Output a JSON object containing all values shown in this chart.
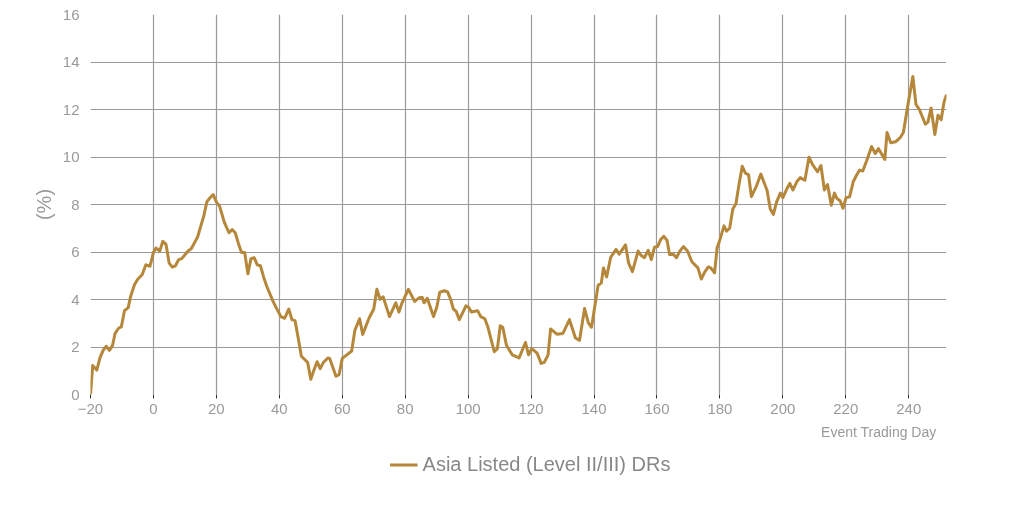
{
  "chart_data": {
    "type": "line",
    "xlabel": "Event Trading Day",
    "ylabel": "(%)",
    "x": [
      -20,
      -19.3,
      -18,
      -17,
      -16,
      -15,
      -14,
      -13,
      -12.2,
      -11,
      -10.2,
      -9.2,
      -8,
      -7.3,
      -6,
      -5,
      -3.6,
      -2.4,
      -1.1,
      0,
      0.8,
      2,
      3,
      4,
      5,
      6,
      7,
      8,
      9,
      11,
      12,
      14,
      15,
      16,
      17,
      18,
      19,
      20,
      21,
      22.5,
      24,
      25,
      26,
      27,
      28,
      29,
      30,
      31,
      32,
      33,
      34,
      35,
      36,
      37,
      38,
      39,
      40.5,
      41.7,
      43,
      44,
      45,
      46,
      47,
      49,
      50,
      51,
      52,
      53,
      54,
      55.4,
      56,
      58,
      59,
      60,
      63,
      64,
      65.5,
      66.5,
      68.5,
      70,
      71,
      72,
      73,
      75,
      77,
      78,
      79,
      81,
      83,
      84.4,
      85.4,
      86,
      87,
      89,
      90,
      91,
      92.5,
      93.5,
      94.5,
      95.3,
      96.2,
      97.2,
      99.3,
      100.2,
      101,
      103,
      104,
      105.3,
      106.3,
      108.3,
      109.3,
      110.2,
      111,
      112.2,
      114,
      116.2,
      118.2,
      119.2,
      120.2,
      121.9,
      123.2,
      124.2,
      125.4,
      126.2,
      128.2,
      130.1,
      132.2,
      134.1,
      135.4,
      137,
      138.2,
      139.2,
      141.3,
      142.3,
      143,
      144,
      145.3,
      147,
      148,
      150,
      151,
      152.2,
      154,
      155,
      156,
      157.2,
      158.2,
      159.2,
      160.2,
      161.2,
      162.2,
      163.2,
      164,
      165.2,
      166.2,
      167.2,
      168.4,
      169.7,
      171.1,
      173,
      174.1,
      175.1,
      176.3,
      177.1,
      178.3,
      179.1,
      180.1,
      181.3,
      182.1,
      183.1,
      184.1,
      185.1,
      186.1,
      187.1,
      188.1,
      189.1,
      190,
      191.5,
      193,
      195,
      196,
      197,
      198,
      199.2,
      200,
      201.2,
      202.2,
      203.2,
      204.5,
      205.5,
      207,
      208.3,
      209.5,
      211,
      212.1,
      213.2,
      214.2,
      215.4,
      216.4,
      217.2,
      218.2,
      219.1,
      220.1,
      221.2,
      222.4,
      223.4,
      224.4,
      225.4,
      226.6,
      228.2,
      229.4,
      230.4,
      232.4,
      233.1,
      234.3,
      235.8,
      237.3,
      238.3,
      239.8,
      241.3,
      242.3,
      243.3,
      245.3,
      246.1,
      247.1,
      248.3,
      249.3,
      250.3,
      251.2,
      252
    ],
    "series": [
      {
        "name": "Asia Listed (Level II/III) DRs",
        "color": "#b5873a",
        "values": [
          0,
          1.22,
          1.03,
          1.54,
          1.86,
          2.03,
          1.86,
          2.06,
          2.57,
          2.8,
          2.85,
          3.53,
          3.66,
          4.11,
          4.63,
          4.85,
          5.04,
          5.46,
          5.4,
          5.98,
          6.17,
          6.04,
          6.45,
          6.32,
          5.53,
          5.36,
          5.42,
          5.68,
          5.72,
          6.04,
          6.14,
          6.62,
          7.07,
          7.52,
          8.12,
          8.29,
          8.42,
          8.1,
          7.94,
          7.26,
          6.81,
          6.94,
          6.81,
          6.36,
          5.98,
          5.98,
          5.08,
          5.72,
          5.76,
          5.46,
          5.42,
          4.95,
          4.56,
          4.24,
          3.92,
          3.66,
          3.28,
          3.21,
          3.6,
          3.15,
          3.11,
          2.38,
          1.61,
          1.35,
          0.64,
          1.03,
          1.38,
          1.09,
          1.35,
          1.54,
          1.52,
          0.77,
          0.84,
          1.52,
          1.83,
          2.7,
          3.19,
          2.53,
          3.21,
          3.6,
          4.43,
          4.01,
          4.11,
          3.28,
          3.86,
          3.47,
          3.86,
          4.43,
          3.92,
          4.07,
          4.09,
          3.86,
          4.05,
          3.28,
          3.66,
          4.31,
          4.37,
          4.31,
          3.98,
          3.6,
          3.5,
          3.15,
          3.73,
          3.66,
          3.47,
          3.53,
          3.28,
          3.19,
          2.83,
          1.8,
          1.93,
          2.89,
          2.83,
          2.06,
          1.67,
          1.54,
          2.19,
          1.67,
          1.93,
          1.74,
          1.31,
          1.35,
          1.67,
          2.76,
          2.54,
          2.57,
          3.15,
          2.38,
          2.28,
          3.62,
          3.02,
          2.83,
          4.6,
          4.69,
          5.33,
          4.95,
          5.78,
          6.11,
          5.91,
          6.3,
          5.53,
          5.17,
          6.04,
          5.85,
          5.76,
          6.07,
          5.68,
          6.2,
          6.23,
          6.53,
          6.66,
          6.49,
          5.89,
          5.91,
          5.76,
          6.02,
          6.23,
          6.04,
          5.59,
          5.33,
          4.86,
          5.14,
          5.37,
          5.33,
          5.12,
          6.17,
          6.56,
          7.1,
          6.88,
          7.0,
          7.81,
          8.03,
          8.87,
          9.61,
          9.32,
          9.25,
          8.33,
          8.74,
          9.28,
          8.59,
          7.81,
          7.58,
          8.1,
          8.48,
          8.29,
          8.64,
          8.89,
          8.61,
          8.97,
          9.13,
          9.02,
          9.99,
          9.67,
          9.38,
          9.64,
          8.61,
          8.84,
          7.97,
          8.48,
          8.25,
          8.16,
          7.84,
          8.29,
          8.32,
          8.97,
          9.23,
          9.45,
          9.41,
          9.83,
          10.44,
          10.15,
          10.35,
          9.9,
          11.03,
          10.6,
          10.64,
          10.82,
          11.03,
          12.24,
          13.39,
          12.21,
          12.02,
          11.38,
          11.47,
          12.06,
          10.95,
          11.76,
          11.57,
          12.31,
          12.62
        ]
      }
    ],
    "xlim": [
      -20,
      252
    ],
    "ylim": [
      0,
      16
    ],
    "xticks": [
      -20,
      0,
      20,
      40,
      60,
      80,
      100,
      120,
      140,
      160,
      180,
      200,
      220,
      240
    ],
    "yticks": [
      0,
      2,
      4,
      6,
      8,
      10,
      12,
      14,
      16
    ],
    "grid": true,
    "legend": "bottom",
    "line_style": "solid",
    "marker": "none"
  }
}
